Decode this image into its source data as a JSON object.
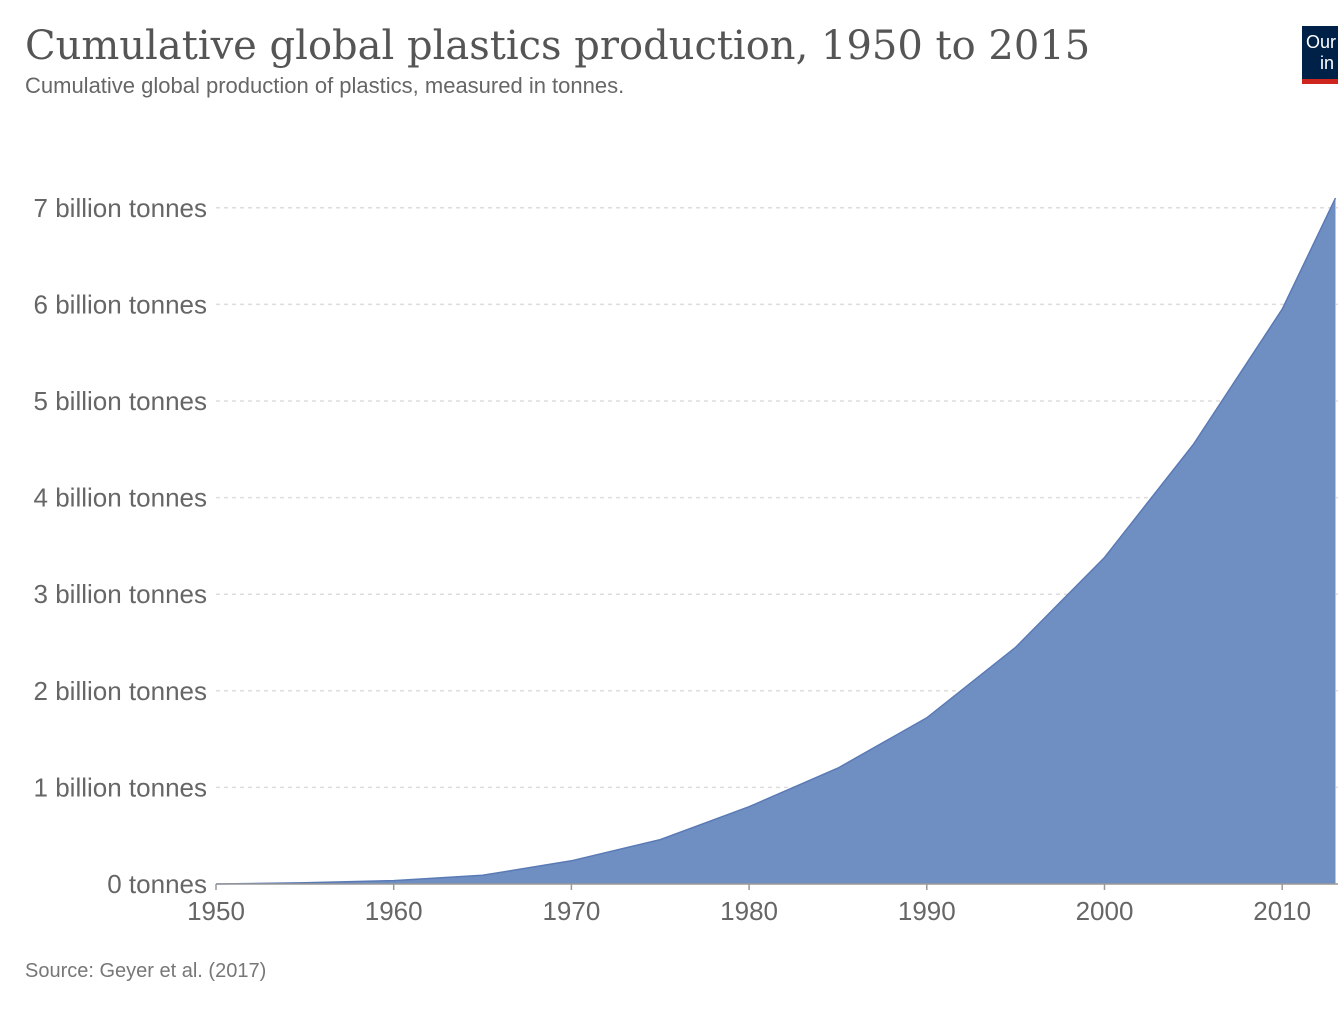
{
  "header": {
    "title": "Cumulative global plastics production, 1950 to 2015",
    "subtitle": "Cumulative global production of plastics, measured in tonnes."
  },
  "logo": {
    "line1": "Our",
    "line2": "in",
    "background": "#002147",
    "accent": "#ce261e"
  },
  "footer": {
    "source": "Source: Geyer et al. (2017)"
  },
  "chart_data": {
    "type": "area",
    "title": "Cumulative global plastics production, 1950 to 2015",
    "subtitle": "Cumulative global production of plastics, measured in tonnes.",
    "xlabel": "",
    "ylabel": "",
    "xlim": [
      1950,
      2013
    ],
    "ylim": [
      0,
      7.4
    ],
    "y_unit": "billion tonnes",
    "grid": "horizontal dashed",
    "fill_color": "#6f8fc3",
    "stroke_color": "#5a7ab5",
    "x_ticks": [
      1950,
      1960,
      1970,
      1980,
      1990,
      2000,
      2010
    ],
    "x_tick_labels": [
      "1950",
      "1960",
      "1970",
      "1980",
      "1990",
      "2000",
      "2010"
    ],
    "y_ticks": [
      0,
      1,
      2,
      3,
      4,
      5,
      6,
      7
    ],
    "y_tick_labels": [
      "0 tonnes",
      "1 billion tonnes",
      "2 billion tonnes",
      "3 billion tonnes",
      "4 billion tonnes",
      "5 billion tonnes",
      "6 billion tonnes",
      "7 billion tonnes"
    ],
    "x": [
      1950,
      1955,
      1960,
      1965,
      1970,
      1975,
      1980,
      1985,
      1990,
      1995,
      2000,
      2005,
      2010,
      2013
    ],
    "values": [
      0.0,
      0.012,
      0.035,
      0.09,
      0.24,
      0.46,
      0.8,
      1.2,
      1.72,
      2.45,
      3.38,
      4.55,
      5.95,
      7.1
    ]
  }
}
